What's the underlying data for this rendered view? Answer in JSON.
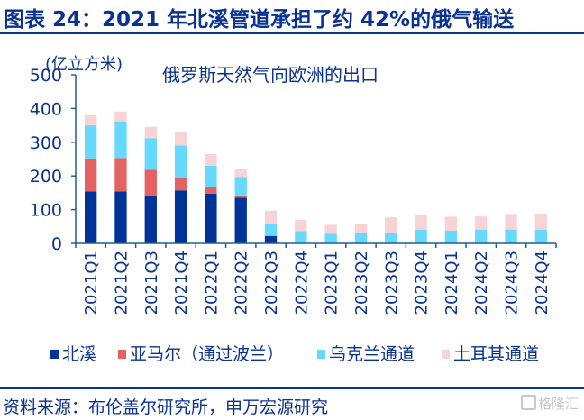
{
  "header": {
    "title": "图表 24：2021 年北溪管道承担了约 42%的俄气输送"
  },
  "footer": {
    "source": "资料来源：布伦盖尔研究所，申万宏源研究",
    "watermark": "格隆汇"
  },
  "colors": {
    "brand": "#0A3291",
    "axis": "#1F5F8B",
    "nord_stream": "#003399",
    "yamal": "#E46262",
    "ukraine": "#66D9FF",
    "turkstream": "#F8D3D6"
  },
  "chart_data": {
    "type": "bar",
    "stacked": true,
    "title": "俄罗斯天然气向欧洲的出口",
    "ylabel": "(亿立方米)",
    "xlabel": "",
    "ylim": [
      0,
      500
    ],
    "yticks": [
      "0",
      "100",
      "200",
      "300",
      "400",
      "500"
    ],
    "categories": [
      "2021Q1",
      "2021Q2",
      "2021Q3",
      "2021Q4",
      "2022Q1",
      "2022Q2",
      "2022Q3",
      "2022Q4",
      "2023Q1",
      "2023Q2",
      "2023Q3",
      "2023Q4",
      "2024Q1",
      "2024Q2",
      "2024Q3",
      "2024Q4"
    ],
    "legend_position": "bottom",
    "grid": false,
    "series": [
      {
        "name": "北溪",
        "color": "#003399",
        "values": [
          154,
          154,
          139,
          157,
          147,
          135,
          22,
          0,
          0,
          0,
          0,
          0,
          0,
          0,
          0,
          0
        ]
      },
      {
        "name": "亚马尔（通过波兰）",
        "color": "#E46262",
        "values": [
          98,
          99,
          79,
          37,
          20,
          7,
          0,
          0,
          0,
          0,
          0,
          0,
          0,
          0,
          0,
          0
        ]
      },
      {
        "name": "乌克兰通道",
        "color": "#66D9FF",
        "values": [
          98,
          109,
          94,
          96,
          63,
          55,
          35,
          36,
          28,
          32,
          32,
          41,
          38,
          41,
          41,
          41
        ]
      },
      {
        "name": "土耳其通道",
        "color": "#F8D3D6",
        "values": [
          30,
          29,
          34,
          39,
          35,
          25,
          40,
          34,
          27,
          26,
          45,
          42,
          41,
          39,
          46,
          47
        ]
      }
    ]
  }
}
